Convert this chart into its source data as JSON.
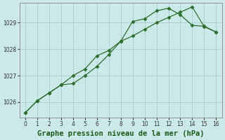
{
  "title": "Graphe pression niveau de la mer (hPa)",
  "title_fontsize": 7.5,
  "bg_color": "#cce9e9",
  "plot_bg_color": "#cce9e9",
  "grid_color": "#aacccc",
  "line_color": "#2d6e2d",
  "marker_color": "#2d6e2d",
  "title_color": "#1a5c1a",
  "title_bg": "#7ab87a",
  "ylim": [
    1025.4,
    1029.75
  ],
  "xlim": [
    -0.5,
    16.5
  ],
  "xticks": [
    0,
    1,
    2,
    3,
    4,
    5,
    6,
    7,
    8,
    9,
    10,
    11,
    12,
    13,
    14,
    15,
    16
  ],
  "yticks": [
    1026,
    1027,
    1028,
    1029
  ],
  "series1_x": [
    0,
    1,
    2,
    3,
    4,
    5,
    6,
    7,
    8,
    9,
    10,
    11,
    12,
    13,
    14,
    15,
    16
  ],
  "series1_y": [
    1025.6,
    1026.05,
    1026.35,
    1026.65,
    1026.7,
    1027.0,
    1027.35,
    1027.8,
    1028.3,
    1028.5,
    1028.75,
    1029.0,
    1029.2,
    1029.4,
    1029.6,
    1028.85,
    1028.65
  ],
  "series2_x": [
    0,
    1,
    2,
    3,
    4,
    5,
    6,
    7,
    8,
    9,
    10,
    11,
    12,
    13,
    14,
    15,
    16
  ],
  "series2_y": [
    1025.6,
    1026.05,
    1026.35,
    1026.65,
    1027.0,
    1027.25,
    1027.75,
    1027.95,
    1028.3,
    1029.05,
    1029.15,
    1029.45,
    1029.55,
    1029.3,
    1028.9,
    1028.87,
    1028.65
  ]
}
